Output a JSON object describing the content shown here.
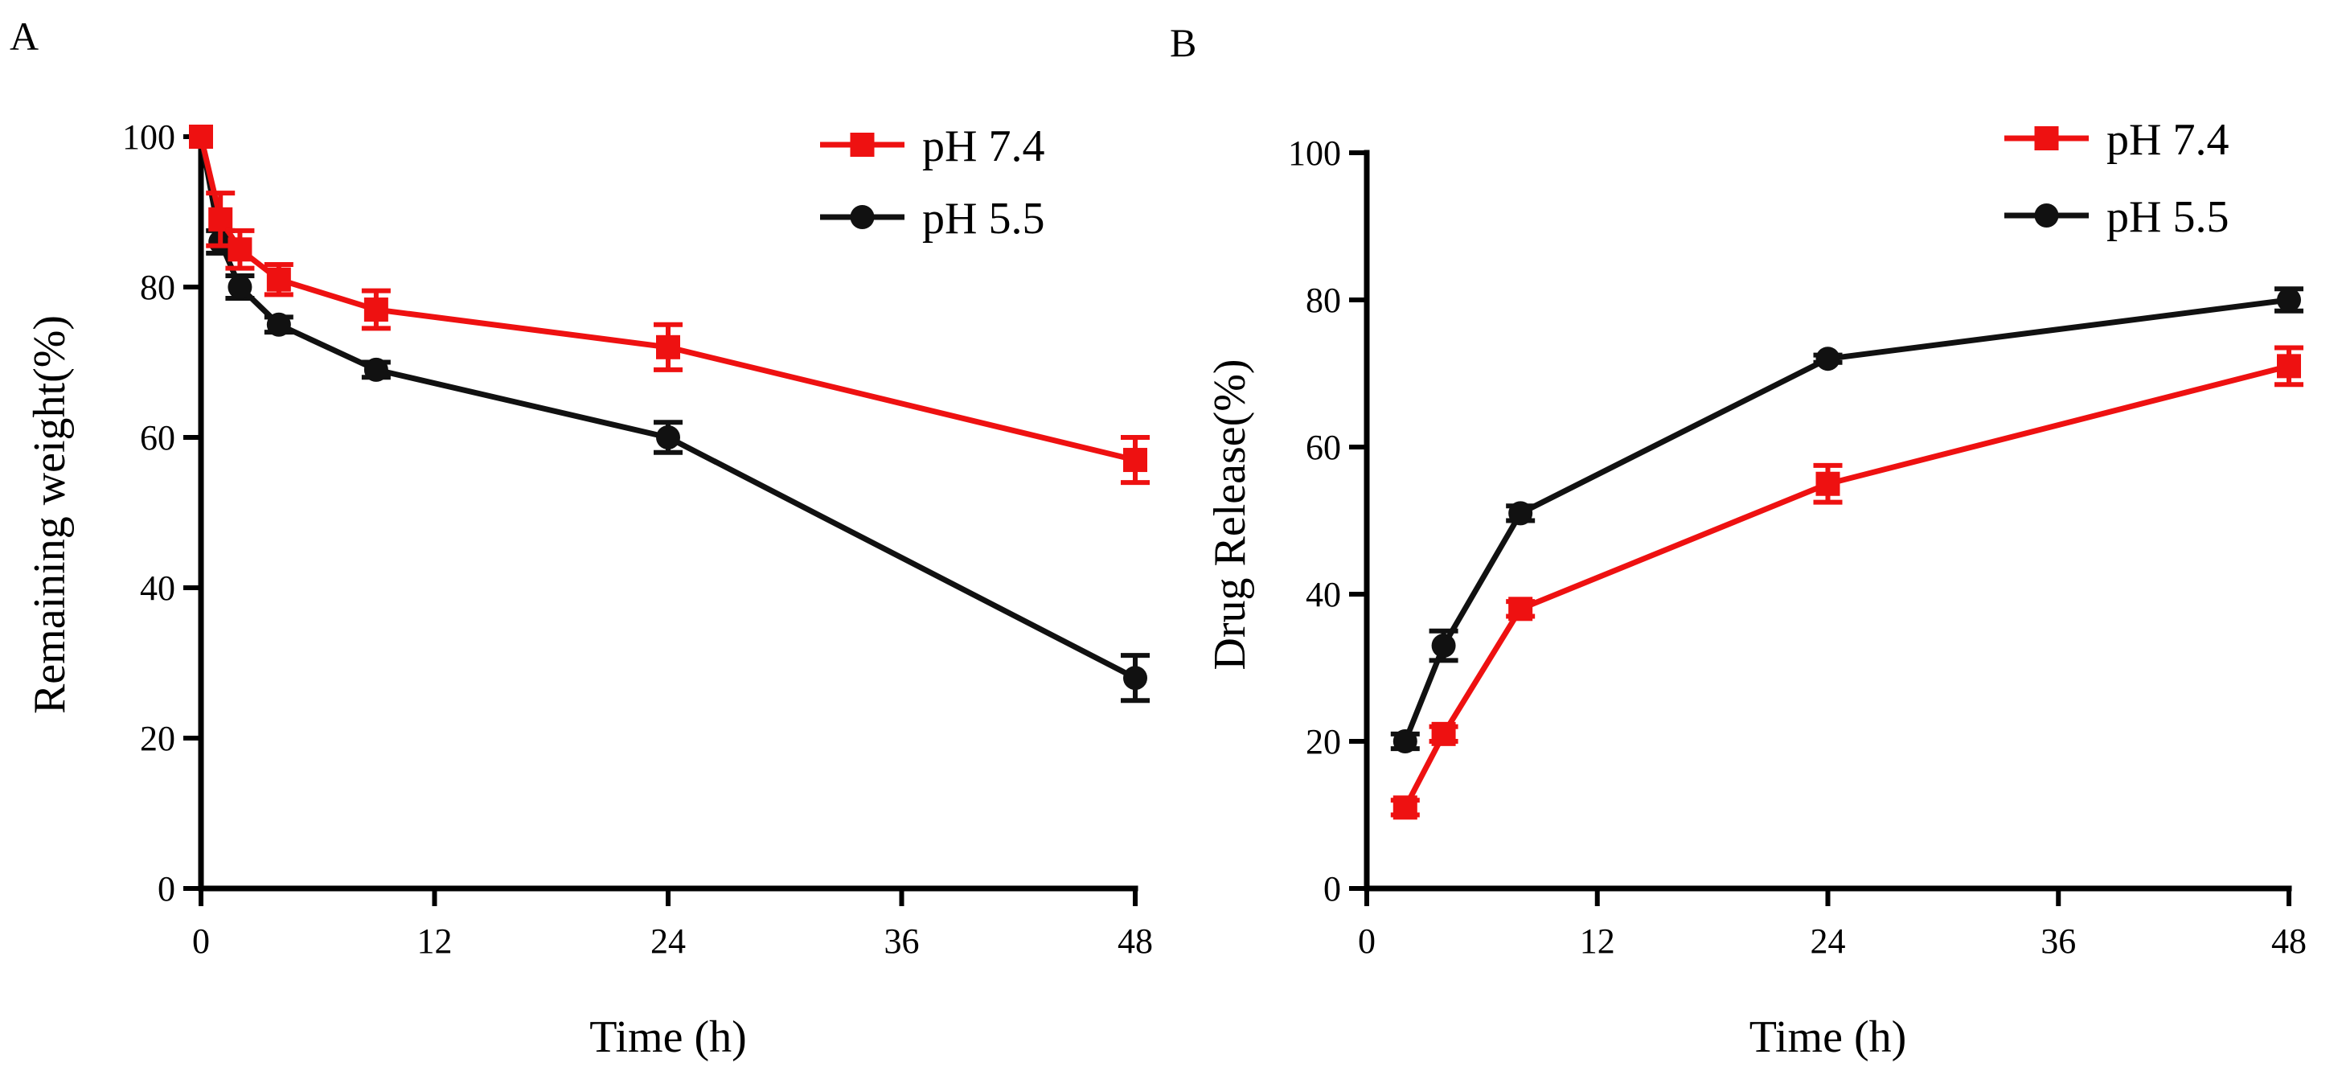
{
  "chart_data": [
    {
      "type": "line",
      "panel_label": "A",
      "xlabel": "Time (h)",
      "ylabel": "Remaining weight(%)",
      "xlim": [
        0,
        48
      ],
      "ylim": [
        0,
        100
      ],
      "xticks": [
        0,
        12,
        24,
        36,
        48
      ],
      "yticks": [
        0,
        20,
        40,
        60,
        80,
        100
      ],
      "grid": false,
      "legend_position": "top-right",
      "series": [
        {
          "name": "pH 7.4",
          "color": "#ee1111",
          "marker": "square",
          "x": [
            0,
            1,
            2,
            4,
            9,
            24,
            48
          ],
          "y": [
            100,
            89,
            85,
            81,
            77,
            72,
            57
          ],
          "err": [
            0,
            3.5,
            2.5,
            2.0,
            2.5,
            3.0,
            3.0
          ]
        },
        {
          "name": "pH 5.5",
          "color": "#111111",
          "marker": "circle",
          "x": [
            0,
            1,
            2,
            4,
            9,
            24,
            48
          ],
          "y": [
            100,
            86,
            80,
            75,
            69,
            60,
            28
          ],
          "err": [
            0,
            1.5,
            1.5,
            1.0,
            1.0,
            2.0,
            3.0
          ]
        }
      ]
    },
    {
      "type": "line",
      "panel_label": "B",
      "xlabel": "Time (h)",
      "ylabel": "Drug Release(%)",
      "xlim": [
        0,
        48
      ],
      "ylim": [
        0,
        100
      ],
      "xticks": [
        0,
        12,
        24,
        36,
        48
      ],
      "yticks": [
        0,
        20,
        40,
        60,
        80,
        100
      ],
      "grid": false,
      "legend_position": "top-right",
      "series": [
        {
          "name": "pH 7.4",
          "color": "#ee1111",
          "marker": "square",
          "x": [
            2,
            4,
            8,
            24,
            48
          ],
          "y": [
            11,
            21,
            38,
            55,
            71
          ],
          "err": [
            1.0,
            1.0,
            1.0,
            2.5,
            2.5
          ]
        },
        {
          "name": "pH 5.5",
          "color": "#111111",
          "marker": "circle",
          "x": [
            2,
            4,
            8,
            24,
            48
          ],
          "y": [
            20,
            33,
            51,
            72,
            80
          ],
          "err": [
            1.0,
            2.0,
            1.0,
            0.5,
            1.5
          ]
        }
      ]
    }
  ]
}
